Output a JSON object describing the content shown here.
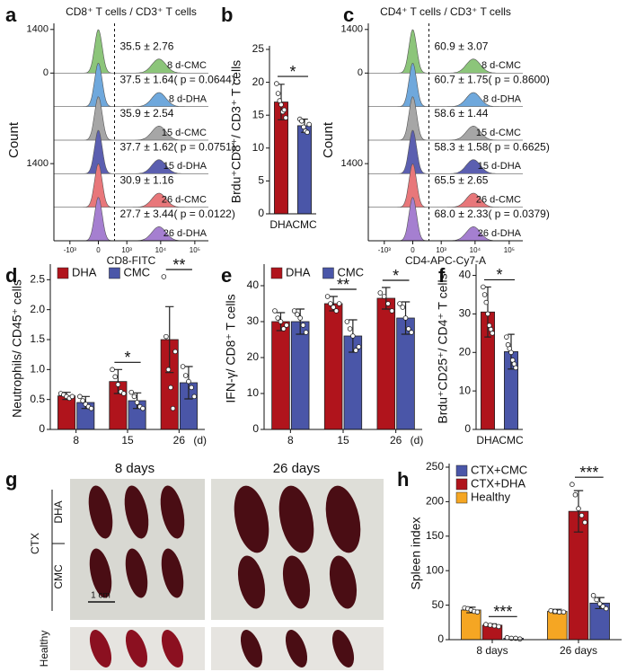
{
  "chart_data": [
    {
      "type": "flow-histogram",
      "label": "a",
      "title": "CD8⁺ T cells / CD3⁺ T cells",
      "xlabel": "CD8-FITC",
      "ylabel": "Count",
      "xscale": "biexponential",
      "xlim": [
        -3000,
        250000
      ],
      "xticks": [
        {
          "value": -1000,
          "label": "-10³"
        },
        0,
        {
          "value": 1000,
          "label": "10³"
        },
        {
          "value": 10000,
          "label": "10⁴"
        },
        {
          "value": 100000,
          "label": "10⁵"
        }
      ],
      "ylim": [
        0,
        1400
      ],
      "yticks": [
        {
          "row": 0,
          "value": 1400
        },
        {
          "row": 0,
          "value": 0
        },
        {
          "row": 4,
          "value": 1400
        }
      ],
      "rows": [
        {
          "name": "8 d-CMC",
          "color": "#8cc57a",
          "annotation": "35.5 ± 2.76"
        },
        {
          "name": "8 d-DHA",
          "color": "#6fa8dc",
          "annotation": "37.5 ± 1.64( p = 0.0644)"
        },
        {
          "name": "15 d-CMC",
          "color": "#a6a6a6",
          "annotation": "35.9 ± 2.54"
        },
        {
          "name": "15 d-DHA",
          "color": "#5b5fb0",
          "annotation": "37.7 ± 1.62( p = 0.0751)"
        },
        {
          "name": "26 d-CMC",
          "color": "#e8777a",
          "annotation": "30.9 ± 1.16"
        },
        {
          "name": "26 d-DHA",
          "color": "#a57fd0",
          "annotation": "27.7 ± 3.44( p = 0.0122)"
        }
      ]
    },
    {
      "type": "bar",
      "label": "b",
      "ylabel": "Brdu⁺CD8⁺/ CD3⁺ T cells",
      "categories": [
        "DHA",
        "CMC"
      ],
      "colors": [
        "#b0141c",
        "#4a56a8"
      ],
      "values": [
        17.0,
        13.4
      ],
      "errors": [
        2.7,
        1.0
      ],
      "points": [
        [
          19.8,
          18.3,
          17.2,
          16.6,
          15.5,
          15.8,
          14.6
        ],
        [
          14.4,
          14.1,
          13.2,
          12.6,
          12.4,
          13.6
        ]
      ],
      "ylim": [
        0,
        25
      ],
      "yticks": [
        0,
        5,
        10,
        15,
        20,
        25
      ],
      "annotations": [
        {
          "text": "*"
        }
      ]
    },
    {
      "type": "flow-histogram",
      "label": "c",
      "title": "CD4⁺ T cells / CD3⁺ T cells",
      "xlabel": "CD4-APC-Cy7-A",
      "ylabel": "Count",
      "xscale": "biexponential",
      "xlim": [
        -3000,
        250000
      ],
      "xticks": [
        {
          "value": -1000,
          "label": "-10³"
        },
        0,
        {
          "value": 1000,
          "label": "10³"
        },
        {
          "value": 10000,
          "label": "10⁴"
        },
        {
          "value": 100000,
          "label": "10⁵"
        }
      ],
      "ylim": [
        0,
        1400
      ],
      "yticks": [
        {
          "row": 0,
          "value": 1400
        },
        {
          "row": 0,
          "value": 0
        },
        {
          "row": 4,
          "value": 1400
        }
      ],
      "rows": [
        {
          "name": "8 d-CMC",
          "color": "#8cc57a",
          "annotation": "60.9 ± 3.07"
        },
        {
          "name": "8 d-DHA",
          "color": "#6fa8dc",
          "annotation": "60.7 ± 1.75( p = 0.8600)"
        },
        {
          "name": "15 d-CMC",
          "color": "#a6a6a6",
          "annotation": "58.6 ± 1.44"
        },
        {
          "name": "15 d-DHA",
          "color": "#5b5fb0",
          "annotation": "58.3 ± 1.58( p = 0.6625)"
        },
        {
          "name": "26 d-CMC",
          "color": "#e8777a",
          "annotation": "65.5 ± 2.65"
        },
        {
          "name": "26 d-DHA",
          "color": "#a57fd0",
          "annotation": "68.0 ± 2.33( p = 0.0379)"
        }
      ]
    },
    {
      "type": "bar",
      "label": "d",
      "ylabel": "Neutrophils/ CD45⁺ cells",
      "xlabel": "(d)",
      "categories": [
        "8",
        "15",
        "26"
      ],
      "series": [
        {
          "name": "DHA",
          "color": "#b0141c",
          "values": [
            0.56,
            0.8,
            1.5
          ],
          "errors": [
            0.06,
            0.2,
            0.55
          ],
          "points": [
            [
              0.6,
              0.58,
              0.55,
              0.52,
              0.55
            ],
            [
              1.0,
              0.88,
              0.75,
              0.63,
              0.6
            ],
            [
              2.55,
              1.55,
              1.0,
              0.7,
              0.35,
              1.3
            ]
          ]
        },
        {
          "name": "CMC",
          "color": "#4a56a8",
          "values": [
            0.45,
            0.48,
            0.78
          ],
          "errors": [
            0.1,
            0.13,
            0.27
          ],
          "points": [
            [
              0.55,
              0.48,
              0.42,
              0.38,
              0.35
            ],
            [
              0.62,
              0.55,
              0.45,
              0.38,
              0.35
            ],
            [
              1.05,
              0.9,
              0.8,
              0.7,
              0.55
            ]
          ]
        }
      ],
      "ylim": [
        0,
        2.7
      ],
      "yticks": [
        0,
        0.5,
        {
          "value": 1,
          "label": "1.0"
        },
        1.5,
        {
          "value": 2,
          "label": "2.0"
        },
        2.5
      ],
      "legend": "top-left",
      "legend_orientation": "horizontal",
      "annotations": [
        {
          "category": 1,
          "text": "*"
        },
        {
          "category": 2,
          "text": "**"
        }
      ]
    },
    {
      "type": "bar",
      "label": "e",
      "ylabel": "IFN-γ/ CD8⁺ T cells",
      "xlabel": "(d)",
      "categories": [
        "8",
        "15",
        "26"
      ],
      "series": [
        {
          "name": "DHA",
          "color": "#b0141c",
          "values": [
            30,
            35,
            36.5
          ],
          "errors": [
            2.5,
            2,
            3
          ],
          "points": [
            [
              33,
              31,
              30,
              28,
              29
            ],
            [
              37,
              35,
              34,
              33,
              35
            ],
            [
              38,
              37,
              35,
              33
            ]
          ]
        },
        {
          "name": "CMC",
          "color": "#4a56a8",
          "values": [
            30,
            26,
            31
          ],
          "errors": [
            3.5,
            4.5,
            4.5
          ],
          "points": [
            [
              33,
              32,
              31,
              29,
              27
            ],
            [
              30,
              28,
              26,
              22,
              23
            ],
            [
              35,
              34,
              31,
              28,
              27
            ]
          ]
        }
      ],
      "ylim": [
        0,
        45
      ],
      "yticks": [
        0,
        10,
        20,
        30,
        40
      ],
      "legend": "top-left",
      "legend_orientation": "horizontal",
      "annotations": [
        {
          "category": 1,
          "text": "**"
        },
        {
          "category": 2,
          "text": "*"
        }
      ]
    },
    {
      "type": "bar",
      "label": "f",
      "ylabel": "Brdu⁺CD25⁺/ CD4⁺ T cells",
      "categories": [
        "DHA",
        "CMC"
      ],
      "colors": [
        "#b0141c",
        "#4a56a8"
      ],
      "values": [
        30.5,
        20.2
      ],
      "errors": [
        6.5,
        4.5
      ],
      "points": [
        [
          37,
          35,
          33,
          30,
          27,
          26,
          25
        ],
        [
          24,
          22,
          21,
          20,
          18,
          17,
          16
        ]
      ],
      "ylim": [
        0,
        42
      ],
      "yticks": [
        0,
        10,
        20,
        30,
        40
      ],
      "annotations": [
        {
          "text": "*"
        }
      ]
    },
    {
      "type": "bar",
      "label": "h",
      "ylabel": "Spleen index",
      "categories": [
        "8 days",
        "26 days"
      ],
      "series": [
        {
          "name": "Healthy",
          "color": "#f5a623",
          "values": [
            43,
            41
          ],
          "errors": [
            4,
            3
          ],
          "points": [
            [
              46,
              45,
              43,
              41,
              40
            ],
            [
              42,
              41,
              40,
              40
            ]
          ]
        },
        {
          "name": "CTX+DHA",
          "color": "#b0141c",
          "values": [
            21,
            186
          ],
          "errors": [
            2,
            30
          ],
          "points": [
            [
              22,
              21,
              20,
              19
            ],
            [
              225,
              210,
              190,
              180,
              170
            ]
          ]
        },
        {
          "name": "CTX+CMC",
          "color": "#4a56a8",
          "values": [
            2,
            53
          ],
          "errors": [
            1,
            8
          ],
          "points": [
            [
              3,
              2,
              2,
              1
            ],
            [
              64,
              58,
              52,
              48,
              45
            ]
          ]
        }
      ],
      "ylim": [
        0,
        250
      ],
      "yticks": [
        0,
        50,
        100,
        150,
        200,
        250
      ],
      "legend": "top-left",
      "legend_orientation": "vertical",
      "legend_order": "reverse",
      "annotations": [
        {
          "category": 0,
          "series": [
            1,
            2
          ],
          "text": "***"
        },
        {
          "category": 1,
          "series": [
            1,
            2
          ],
          "text": "***"
        }
      ]
    }
  ],
  "photo": {
    "label": "g",
    "columns": [
      "8 days",
      "26 days"
    ],
    "rows": [
      "DHA",
      "CMC"
    ],
    "group": "CTX",
    "healthy": "Healthy",
    "scale": "1 cm"
  }
}
